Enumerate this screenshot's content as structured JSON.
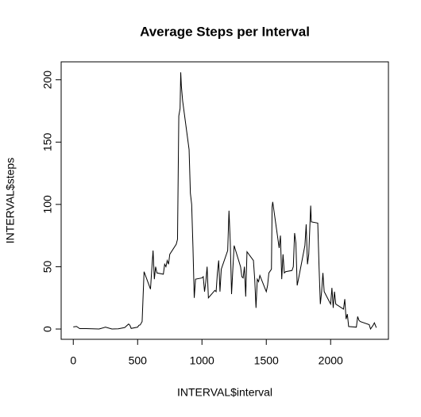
{
  "chart_data": {
    "type": "line",
    "title": "Average Steps per Interval",
    "x_label": "INTERVAL$interval",
    "y_label": "INTERVAL$steps",
    "x": [
      0,
      25,
      50,
      100,
      150,
      200,
      250,
      300,
      350,
      400,
      430,
      440,
      450,
      500,
      510,
      520,
      535,
      550,
      600,
      610,
      620,
      630,
      640,
      650,
      700,
      710,
      720,
      730,
      740,
      750,
      800,
      810,
      820,
      830,
      835,
      840,
      850,
      900,
      910,
      920,
      930,
      940,
      950,
      1000,
      1010,
      1020,
      1030,
      1040,
      1050,
      1100,
      1110,
      1120,
      1130,
      1140,
      1150,
      1200,
      1210,
      1220,
      1230,
      1240,
      1250,
      1300,
      1310,
      1320,
      1330,
      1340,
      1350,
      1400,
      1410,
      1420,
      1430,
      1440,
      1450,
      1500,
      1510,
      1520,
      1540,
      1545,
      1550,
      1600,
      1610,
      1620,
      1630,
      1640,
      1650,
      1700,
      1710,
      1720,
      1730,
      1740,
      1750,
      1800,
      1810,
      1820,
      1830,
      1845,
      1850,
      1900,
      1910,
      1920,
      1930,
      1940,
      1950,
      2000,
      2010,
      2020,
      2030,
      2040,
      2100,
      2110,
      2120,
      2130,
      2140,
      2200,
      2210,
      2220,
      2230,
      2300,
      2310,
      2330,
      2340,
      2355
    ],
    "series": [
      {
        "name": "INTERVAL$steps",
        "color": "#000000",
        "values": [
          1.7,
          2.1,
          0.3,
          0.3,
          0.2,
          0,
          1.5,
          0,
          0.2,
          1.2,
          4,
          3,
          0.5,
          1.5,
          3,
          3.3,
          6,
          46,
          32,
          48,
          63,
          40,
          50,
          45,
          44,
          52,
          50,
          55,
          52,
          60,
          68,
          72,
          171,
          177,
          206,
          195,
          183,
          144,
          109,
          100,
          66,
          25,
          40,
          41,
          42,
          30,
          38,
          50,
          25,
          31,
          30,
          45,
          55,
          30,
          48,
          63,
          95,
          70,
          28,
          48,
          67,
          50,
          42,
          41,
          50,
          26,
          62,
          55,
          40,
          17,
          40,
          38,
          43,
          30,
          35,
          45,
          48,
          98,
          102,
          65,
          75,
          40,
          60,
          45,
          46,
          47,
          50,
          77,
          69,
          35,
          40,
          67,
          84,
          52,
          60,
          99,
          86,
          85,
          50,
          20,
          30,
          45,
          30,
          20,
          33,
          17,
          30,
          20,
          16,
          24,
          8,
          12,
          2,
          1.5,
          10,
          7,
          6,
          3.5,
          0,
          3,
          5,
          1.1
        ]
      }
    ],
    "xlim": [
      -94.2,
      2449.2
    ],
    "ylim": [
      -8.25,
      214.42
    ],
    "xticks": [
      0,
      500,
      1000,
      1500,
      2000
    ],
    "yticks": [
      0,
      50,
      100,
      150,
      200
    ]
  }
}
